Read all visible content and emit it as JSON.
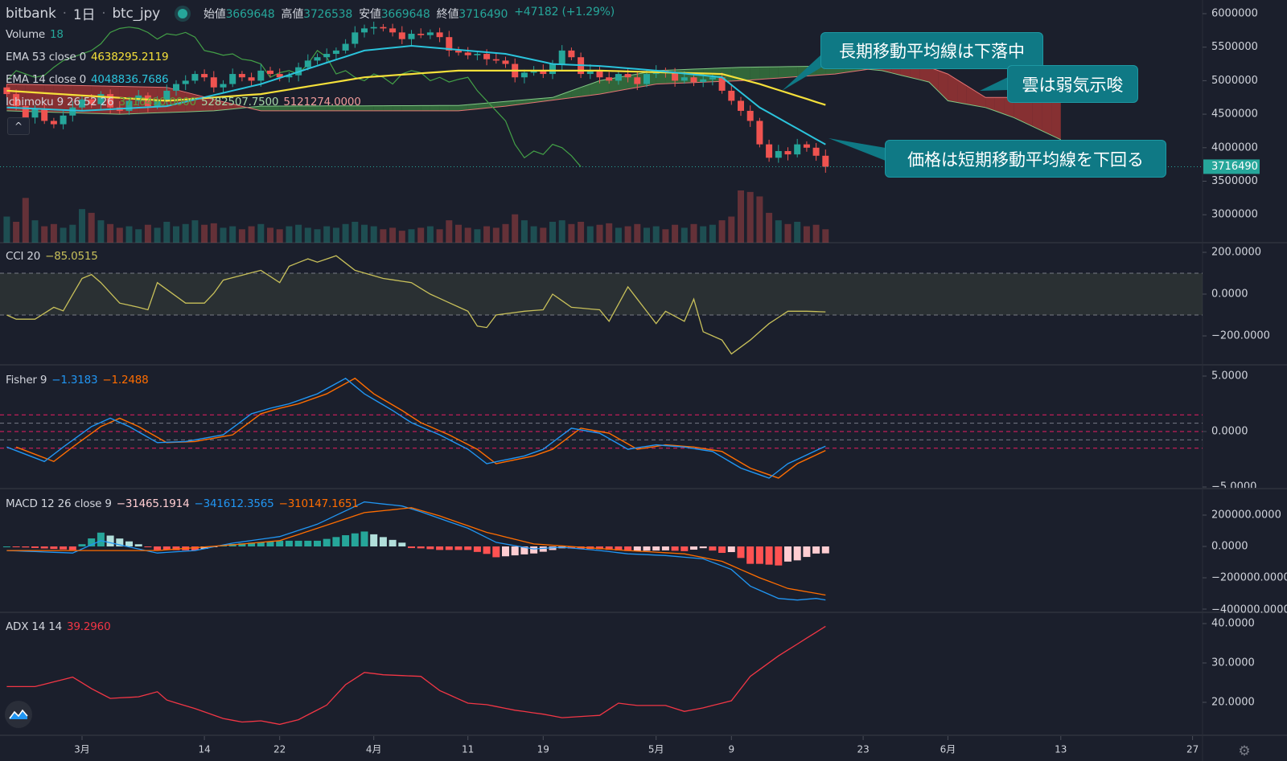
{
  "header": {
    "exchange": "bitbank",
    "interval": "1日",
    "symbol": "btc_jpy",
    "open_label": "始値",
    "open": "3669648",
    "high_label": "高値",
    "high": "3726538",
    "low_label": "安値",
    "low": "3669648",
    "close_label": "終値",
    "close": "3716490",
    "change": "+47182 (+1.29%)"
  },
  "legends": {
    "volume": {
      "label": "Volume",
      "value": "18"
    },
    "ema53": {
      "label": "EMA 53 close 0",
      "value": "4638295.2119"
    },
    "ema14": {
      "label": "EMA 14 close 0",
      "value": "4048836.7686"
    },
    "ichimoku": {
      "label": "Ichimoku 9 26 52 26",
      "v1": "3716490.0000",
      "v2": "5282507.7500",
      "v3": "5121274.0000"
    },
    "cci": {
      "label": "CCI 20",
      "value": "−85.0515"
    },
    "fisher": {
      "label": "Fisher 9",
      "v1": "−1.3183",
      "v2": "−1.2488"
    },
    "macd": {
      "label": "MACD 12 26 close 9",
      "v1": "−31465.1914",
      "v2": "−341612.3565",
      "v3": "−310147.1651"
    },
    "adx": {
      "label": "ADX 14 14",
      "value": "39.2960"
    }
  },
  "annotations": [
    "長期移動平均線は下落中",
    "雲は弱気示唆",
    "価格は短期移動平均線を下回る"
  ],
  "collapse_label": "^",
  "colors": {
    "up": "#26a69a",
    "down": "#ef5350",
    "ema53": "#f5e03a",
    "ema14": "#2bc4dc",
    "cci": "#c8c05a",
    "fisher": "#2196f3",
    "trigger": "#ff6d00",
    "adx": "#f23645",
    "annotation": "#0f7985"
  },
  "chart_data": {
    "type": "candlestick-with-indicators",
    "x_axis": {
      "ticks": [
        {
          "date": "03-01",
          "label": "3月"
        },
        {
          "date": "03-14",
          "label": "14"
        },
        {
          "date": "03-22",
          "label": "22"
        },
        {
          "date": "04-01",
          "label": "4月"
        },
        {
          "date": "04-11",
          "label": "11"
        },
        {
          "date": "04-19",
          "label": "19"
        },
        {
          "date": "05-01",
          "label": "5月"
        },
        {
          "date": "05-09",
          "label": "9"
        },
        {
          "date": "05-23",
          "label": "23"
        },
        {
          "date": "06-01",
          "label": "6月"
        },
        {
          "date": "06-13",
          "label": "13"
        },
        {
          "date": "06-27",
          "label": "27"
        }
      ]
    },
    "price": {
      "y_ticks": [
        "6000000",
        "5500000",
        "5000000",
        "4500000",
        "4000000",
        "3500000",
        "3000000"
      ],
      "last_price_tag": "3716490",
      "start_date": "02-21",
      "close": [
        4800000,
        4620000,
        4450000,
        4580000,
        4400000,
        4350000,
        4480000,
        4600000,
        4720000,
        4650000,
        4800000,
        4600000,
        4550000,
        4700000,
        4780000,
        4620000,
        4700000,
        4850000,
        4950000,
        5000000,
        5100000,
        5050000,
        4900000,
        4950000,
        5100000,
        5050000,
        5000000,
        5150000,
        5100000,
        5050000,
        5080000,
        5200000,
        5300000,
        5350000,
        5400000,
        5450000,
        5550000,
        5720000,
        5780000,
        5800000,
        5780000,
        5720000,
        5620000,
        5700000,
        5680000,
        5720000,
        5650000,
        5450000,
        5420000,
        5380000,
        5400000,
        5320000,
        5300000,
        5250000,
        5050000,
        5120000,
        5150000,
        5100000,
        5250000,
        5450000,
        5350000,
        5100000,
        5150000,
        5050000,
        5000000,
        5100000,
        5050000,
        4950000,
        5100000,
        5150000,
        5120000,
        5000000,
        5050000,
        4980000,
        5020000,
        5050000,
        4850000,
        4700000,
        4550000,
        4400000,
        4050000,
        3850000,
        3950000,
        3900000,
        4050000,
        4000000,
        3880000,
        3716490
      ],
      "volume": [
        35,
        28,
        60,
        30,
        22,
        25,
        20,
        24,
        45,
        40,
        30,
        25,
        20,
        22,
        18,
        24,
        20,
        28,
        22,
        25,
        30,
        24,
        26,
        20,
        22,
        18,
        22,
        25,
        20,
        18,
        22,
        24,
        20,
        18,
        22,
        20,
        25,
        28,
        24,
        22,
        18,
        20,
        16,
        18,
        20,
        22,
        18,
        30,
        24,
        20,
        18,
        22,
        20,
        25,
        38,
        30,
        22,
        20,
        28,
        30,
        25,
        28,
        22,
        24,
        26,
        20,
        22,
        25,
        20,
        22,
        18,
        24,
        20,
        25,
        22,
        24,
        30,
        35,
        70,
        68,
        62,
        40,
        30,
        25,
        28,
        22,
        24,
        18
      ],
      "ema53": [
        [
          "02-21",
          4850000
        ],
        [
          "03-10",
          4700000
        ],
        [
          "03-20",
          4800000
        ],
        [
          "03-31",
          5050000
        ],
        [
          "04-10",
          5150000
        ],
        [
          "04-25",
          5150000
        ],
        [
          "05-08",
          5100000
        ],
        [
          "05-12",
          4950000
        ],
        [
          "05-19",
          4638295
        ]
      ],
      "ema14": [
        [
          "02-21",
          4600000
        ],
        [
          "03-01",
          4550000
        ],
        [
          "03-10",
          4620000
        ],
        [
          "03-20",
          4950000
        ],
        [
          "03-31",
          5450000
        ],
        [
          "04-05",
          5520000
        ],
        [
          "04-15",
          5400000
        ],
        [
          "04-20",
          5250000
        ],
        [
          "04-25",
          5220000
        ],
        [
          "05-01",
          5150000
        ],
        [
          "05-08",
          5050000
        ],
        [
          "05-12",
          4600000
        ],
        [
          "05-19",
          4048837
        ]
      ],
      "ichimoku_span_a": [
        [
          "02-21",
          4550000
        ],
        [
          "03-05",
          4500000
        ],
        [
          "03-15",
          4550000
        ],
        [
          "03-20",
          4620000
        ],
        [
          "04-10",
          4630000
        ],
        [
          "04-20",
          4750000
        ],
        [
          "04-25",
          5000000
        ],
        [
          "05-01",
          5150000
        ],
        [
          "05-10",
          5200000
        ],
        [
          "05-20",
          5220000
        ],
        [
          "05-25",
          5150000
        ],
        [
          "05-30",
          4980000
        ],
        [
          "06-01",
          4700000
        ],
        [
          "06-05",
          4600000
        ],
        [
          "06-08",
          4450000
        ],
        [
          "06-13",
          4120000
        ]
      ],
      "ichimoku_span_b": [
        [
          "02-21",
          4950000
        ],
        [
          "03-10",
          4900000
        ],
        [
          "03-15",
          4720000
        ],
        [
          "03-20",
          4550000
        ],
        [
          "04-10",
          4550000
        ],
        [
          "04-15",
          4620000
        ],
        [
          "04-25",
          4800000
        ],
        [
          "05-01",
          4950000
        ],
        [
          "05-10",
          5000000
        ],
        [
          "05-20",
          5100000
        ],
        [
          "05-25",
          5200000
        ],
        [
          "05-30",
          5200000
        ],
        [
          "06-01",
          5100000
        ],
        [
          "06-05",
          4750000
        ],
        [
          "06-13",
          4750000
        ]
      ],
      "ichimoku_lagging_shift": 26
    },
    "cci": {
      "y_ticks": [
        "200.0000",
        "0.0000",
        "−200.0000"
      ],
      "bands": [
        100,
        -100
      ],
      "values": [
        [
          "02-21",
          -100
        ],
        [
          "02-22",
          -120
        ],
        [
          "02-24",
          -120
        ],
        [
          "02-26",
          -63
        ],
        [
          "02-27",
          -80
        ],
        [
          "03-01",
          75
        ],
        [
          "03-02",
          94
        ],
        [
          "03-03",
          55
        ],
        [
          "03-05",
          -43
        ],
        [
          "03-07",
          -63
        ],
        [
          "03-08",
          -75
        ],
        [
          "03-09",
          55
        ],
        [
          "03-12",
          -43
        ],
        [
          "03-14",
          -43
        ],
        [
          "03-15",
          4
        ],
        [
          "03-16",
          67
        ],
        [
          "03-20",
          114
        ],
        [
          "03-22",
          55
        ],
        [
          "03-23",
          133
        ],
        [
          "03-25",
          169
        ],
        [
          "03-26",
          153
        ],
        [
          "03-28",
          184
        ],
        [
          "03-30",
          114
        ],
        [
          "04-02",
          75
        ],
        [
          "04-05",
          55
        ],
        [
          "04-07",
          0
        ],
        [
          "04-11",
          -82
        ],
        [
          "04-12",
          -153
        ],
        [
          "04-13",
          -160
        ],
        [
          "04-14",
          -100
        ],
        [
          "04-17",
          -82
        ],
        [
          "04-19",
          -75
        ],
        [
          "04-20",
          0
        ],
        [
          "04-22",
          -63
        ],
        [
          "04-25",
          -75
        ],
        [
          "04-26",
          -130
        ],
        [
          "04-28",
          35
        ],
        [
          "05-01",
          -141
        ],
        [
          "05-02",
          -82
        ],
        [
          "05-04",
          -130
        ],
        [
          "05-05",
          -24
        ],
        [
          "05-06",
          -180
        ],
        [
          "05-08",
          -220
        ],
        [
          "05-09",
          -286
        ],
        [
          "05-11",
          -220
        ],
        [
          "05-13",
          -141
        ],
        [
          "05-15",
          -82
        ],
        [
          "05-17",
          -82
        ],
        [
          "05-19",
          -85
        ]
      ]
    },
    "fisher": {
      "y_ticks": [
        "5.0000",
        "0.0000",
        "−5.0000"
      ],
      "levels": [
        1.5,
        0.75,
        0,
        -0.75,
        -1.5
      ],
      "values": [
        [
          "02-21",
          -1.4
        ],
        [
          "02-25",
          -2.7
        ],
        [
          "02-27",
          -1.4
        ],
        [
          "03-02",
          0.45
        ],
        [
          "03-04",
          1.2
        ],
        [
          "03-06",
          0.45
        ],
        [
          "03-09",
          -1.0
        ],
        [
          "03-12",
          -0.9
        ],
        [
          "03-16",
          -0.3
        ],
        [
          "03-19",
          1.6
        ],
        [
          "03-21",
          2.1
        ],
        [
          "03-23",
          2.5
        ],
        [
          "03-26",
          3.4
        ],
        [
          "03-29",
          4.8
        ],
        [
          "03-31",
          3.4
        ],
        [
          "04-03",
          1.9
        ],
        [
          "04-05",
          0.8
        ],
        [
          "04-08",
          -0.3
        ],
        [
          "04-11",
          -1.6
        ],
        [
          "04-13",
          -2.9
        ],
        [
          "04-17",
          -2.2
        ],
        [
          "04-19",
          -1.6
        ],
        [
          "04-22",
          0.3
        ],
        [
          "04-25",
          -0.15
        ],
        [
          "04-28",
          -1.6
        ],
        [
          "05-01",
          -1.2
        ],
        [
          "05-04",
          -1.4
        ],
        [
          "05-07",
          -1.8
        ],
        [
          "05-10",
          -3.3
        ],
        [
          "05-13",
          -4.2
        ],
        [
          "05-15",
          -2.9
        ],
        [
          "05-19",
          -1.3183
        ]
      ]
    },
    "macd": {
      "y_ticks": [
        "200000.0000",
        "0.0000",
        "−200000.0000",
        "−400000.0000"
      ],
      "macd": [
        [
          "02-21",
          -26000
        ],
        [
          "02-28",
          -42000
        ],
        [
          "03-03",
          37000
        ],
        [
          "03-05",
          10000
        ],
        [
          "03-09",
          -42000
        ],
        [
          "03-13",
          -26000
        ],
        [
          "03-17",
          21000
        ],
        [
          "03-22",
          63000
        ],
        [
          "03-26",
          142000
        ],
        [
          "03-31",
          284000
        ],
        [
          "04-04",
          258000
        ],
        [
          "04-06",
          221000
        ],
        [
          "04-11",
          116000
        ],
        [
          "04-14",
          26000
        ],
        [
          "04-18",
          -16000
        ],
        [
          "04-21",
          -5000
        ],
        [
          "04-25",
          -26000
        ],
        [
          "04-28",
          -47000
        ],
        [
          "05-02",
          -58000
        ],
        [
          "05-06",
          -79000
        ],
        [
          "05-09",
          -147000
        ],
        [
          "05-11",
          -253000
        ],
        [
          "05-14",
          -332000
        ],
        [
          "05-16",
          -342000
        ],
        [
          "05-18",
          -332000
        ],
        [
          "05-19",
          -341612
        ]
      ],
      "signal": [
        [
          "02-21",
          -26000
        ],
        [
          "03-02",
          -26000
        ],
        [
          "03-09",
          -26000
        ],
        [
          "03-17",
          10000
        ],
        [
          "03-22",
          37000
        ],
        [
          "03-26",
          116000
        ],
        [
          "03-31",
          216000
        ],
        [
          "04-05",
          247000
        ],
        [
          "04-08",
          195000
        ],
        [
          "04-13",
          90000
        ],
        [
          "04-18",
          16000
        ],
        [
          "04-23",
          -5000
        ],
        [
          "04-28",
          -26000
        ],
        [
          "05-04",
          -47000
        ],
        [
          "05-08",
          -95000
        ],
        [
          "05-12",
          -200000
        ],
        [
          "05-15",
          -268000
        ],
        [
          "05-19",
          -310147
        ]
      ]
    },
    "adx": {
      "y_ticks": [
        "40.0000",
        "30.0000",
        "20.0000"
      ],
      "values": [
        [
          "02-21",
          24
        ],
        [
          "02-24",
          24
        ],
        [
          "02-28",
          26.4
        ],
        [
          "03-02",
          23.5
        ],
        [
          "03-04",
          21
        ],
        [
          "03-07",
          21.4
        ],
        [
          "03-09",
          22.7
        ],
        [
          "03-10",
          20.6
        ],
        [
          "03-13",
          18.4
        ],
        [
          "03-16",
          15.9
        ],
        [
          "03-18",
          15
        ],
        [
          "03-20",
          15.3
        ],
        [
          "03-22",
          14.4
        ],
        [
          "03-24",
          15.6
        ],
        [
          "03-27",
          19.3
        ],
        [
          "03-29",
          24.5
        ],
        [
          "03-31",
          27.6
        ],
        [
          "04-02",
          27
        ],
        [
          "04-06",
          26.6
        ],
        [
          "04-08",
          23
        ],
        [
          "04-11",
          19.8
        ],
        [
          "04-13",
          19.4
        ],
        [
          "04-16",
          18
        ],
        [
          "04-19",
          17
        ],
        [
          "04-21",
          16.1
        ],
        [
          "04-25",
          16.7
        ],
        [
          "04-27",
          19.8
        ],
        [
          "04-29",
          19.2
        ],
        [
          "05-02",
          19.2
        ],
        [
          "05-04",
          17.7
        ],
        [
          "05-06",
          18.6
        ],
        [
          "05-09",
          20.4
        ],
        [
          "05-11",
          26.6
        ],
        [
          "05-14",
          31.8
        ],
        [
          "05-16",
          34.8
        ],
        [
          "05-19",
          39.296
        ]
      ]
    }
  }
}
